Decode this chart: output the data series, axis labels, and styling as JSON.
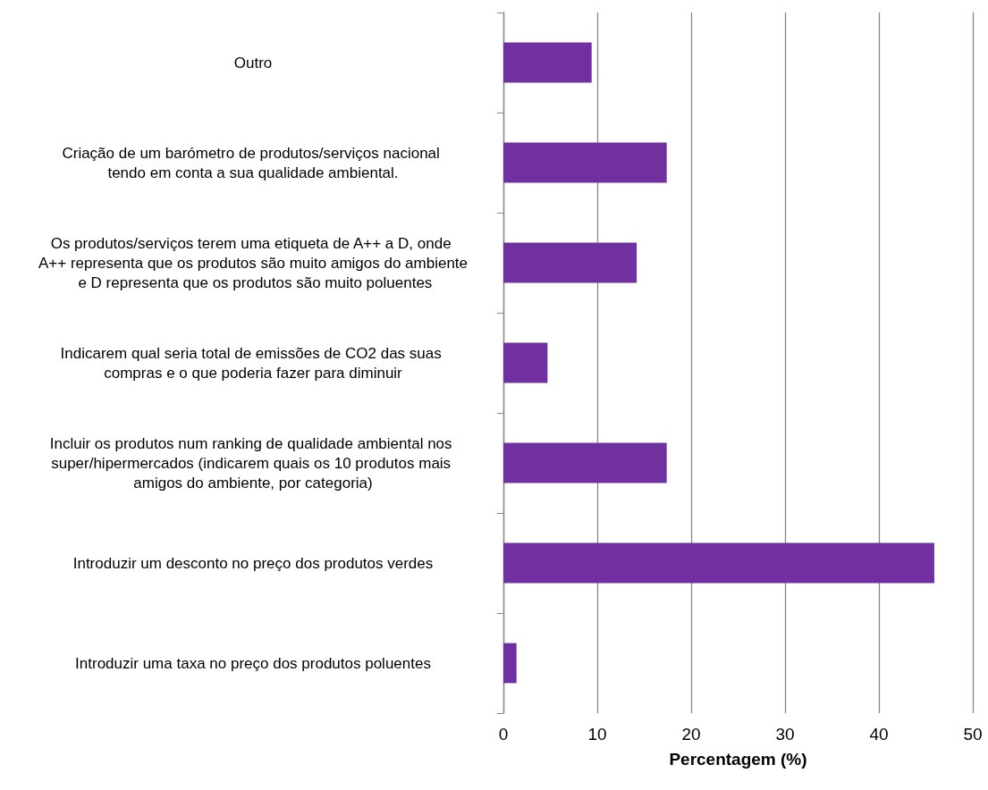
{
  "chart_data": {
    "type": "bar",
    "orientation": "horizontal",
    "xlabel": "Percentagem (%)",
    "categories": [
      "Outro",
      "Criação de um barómetro de produtos/serviços nacional tendo em conta a sua qualidade ambiental.",
      "Os produtos/serviços terem uma etiqueta de A++ a D, onde A++ representa que os produtos são muito amigos do ambiente e D representa que os produtos são muito poluentes",
      "Indicarem qual seria total de emissões de CO2 das suas compras e o que poderia fazer para diminuir",
      "Incluir os produtos num ranking de qualidade ambiental nos super/hipermercados (indicarem quais os 10 produtos mais amigos do ambiente, por categoria)",
      "Introduzir um desconto no preço dos produtos verdes",
      "Introduzir uma taxa no preço dos produtos poluentes"
    ],
    "values": [
      9.4,
      17.4,
      14.2,
      4.7,
      17.4,
      45.9,
      1.4
    ],
    "color": "#7030a0",
    "xlim": [
      0,
      50
    ],
    "xticks": [
      0,
      10,
      20,
      30,
      40,
      50
    ],
    "grid": "x"
  }
}
